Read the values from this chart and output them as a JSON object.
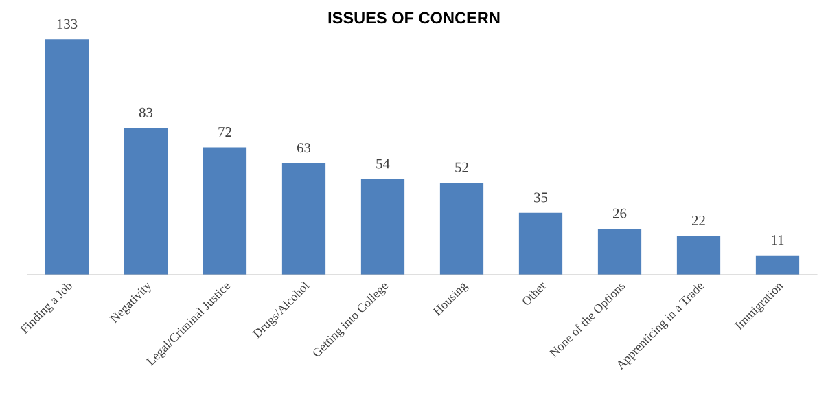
{
  "chart_data": {
    "type": "bar",
    "title": "ISSUES OF CONCERN",
    "categories": [
      "Finding a Job",
      "Negativity",
      "Legal/Criminal Justice",
      "Drugs/Alcohol",
      "Getting into College",
      "Housing",
      "Other",
      "None of the Options",
      "Apprenticing in a Trade",
      "Immigration"
    ],
    "values": [
      133,
      83,
      72,
      63,
      54,
      52,
      35,
      26,
      22,
      11
    ],
    "color": "#4f81bd",
    "data_labels": true,
    "tick_labels": "x"
  }
}
